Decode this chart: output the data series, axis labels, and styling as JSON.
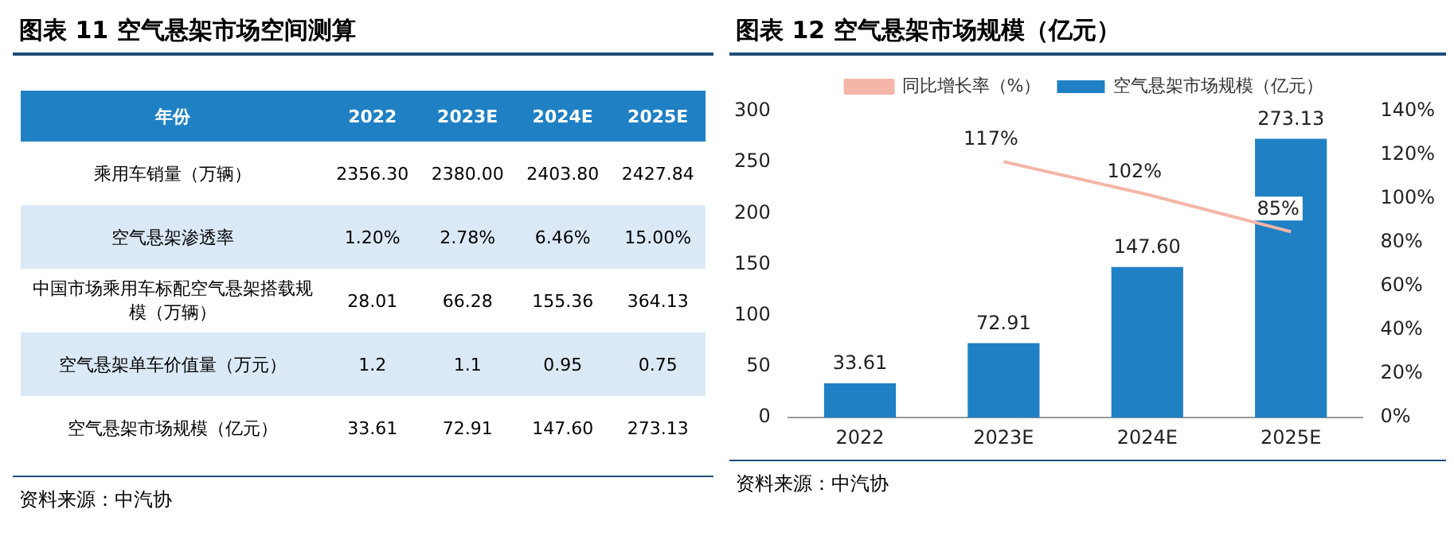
{
  "chart_data": [
    {
      "type": "heatmap",
      "title": "图表 11  空气悬架市场空间测算",
      "ylabel": "年份",
      "categories": [
        "2022",
        "2023E",
        "2024E",
        "2025E"
      ],
      "y_categories": [
        "乘用车销量（万辆）",
        "空气悬架渗透率",
        "中国市场乘用车标配空气悬架搭载规模（万辆）",
        "空气悬架单车价值量（万元）",
        "空气悬架市场规模（亿元）"
      ],
      "cells": [
        [
          2356.3,
          2380,
          2403.8,
          2427.84
        ],
        [
          1.2,
          2.78,
          6.46,
          15
        ],
        [
          28.01,
          66.28,
          155.36,
          364.13
        ],
        [
          1.2,
          1.1,
          0.95,
          0.75
        ],
        [
          33.61,
          72.91,
          147.6,
          273.13
        ]
      ],
      "cell_labels": [
        [
          "2356.30",
          "2380.00",
          "2403.80",
          "2427.84"
        ],
        [
          "1.20%",
          "2.78%",
          "6.46%",
          "15.00%"
        ],
        [
          "28.01",
          "66.28",
          "155.36",
          "364.13"
        ],
        [
          "1.2",
          "1.1",
          "0.95",
          "0.75"
        ],
        [
          "33.61",
          "72.91",
          "147.60",
          "273.13"
        ]
      ],
      "annotations": [
        "资料来源：中汽协"
      ]
    },
    {
      "type": "bar",
      "title": "图表 12  空气悬架市场规模（亿元）",
      "categories": [
        "2022",
        "2023E",
        "2024E",
        "2025E"
      ],
      "series": [
        {
          "type": "bar",
          "name": "空气悬架市场规模（亿元）",
          "color": "#1f80c4",
          "values": [
            33.61,
            72.91,
            147.6,
            273.13
          ],
          "value_labels": [
            "33.61",
            "72.91",
            "147.60",
            "273.13"
          ]
        },
        {
          "type": "line",
          "name": "同比增长率（%）",
          "color": "#f4b6a8",
          "axis": "y2",
          "values": [
            null,
            117,
            102,
            85
          ],
          "value_labels": [
            null,
            "117%",
            "102%",
            "85%"
          ]
        }
      ],
      "ylim": [
        0,
        300
      ],
      "yticks": [
        0,
        50,
        100,
        150,
        200,
        250,
        300
      ],
      "y2lim": [
        0,
        140
      ],
      "y2ticks": [
        {
          "value": 0,
          "label": "0%"
        },
        {
          "value": 20,
          "label": "20%"
        },
        {
          "value": 40,
          "label": "40%"
        },
        {
          "value": 60,
          "label": "60%"
        },
        {
          "value": 80,
          "label": "80%"
        },
        {
          "value": 100,
          "label": "100%"
        },
        {
          "value": 120,
          "label": "120%"
        },
        {
          "value": 140,
          "label": "140%"
        }
      ],
      "legend": "top",
      "marker": "none",
      "grid": false,
      "annotations": [
        "资料来源：中汽协"
      ]
    }
  ]
}
